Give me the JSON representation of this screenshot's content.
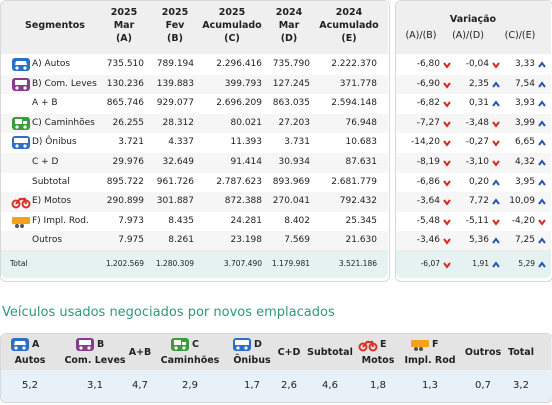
{
  "table": {
    "columns": [
      {
        "lines": [
          "Segmentos"
        ]
      },
      {
        "lines": [
          "2025",
          "Mar",
          "(A)"
        ]
      },
      {
        "lines": [
          "2025",
          "Fev",
          "(B)"
        ]
      },
      {
        "lines": [
          "2025",
          "Acumulado",
          "(C)"
        ]
      },
      {
        "lines": [
          "2024",
          "Mar",
          "(D)"
        ]
      },
      {
        "lines": [
          "2024",
          "Acumulado",
          "(E)"
        ]
      }
    ],
    "variation": {
      "title": "Variação",
      "columns": [
        "(A)/(B)",
        "(A)/(D)",
        "(C)/(E)"
      ]
    },
    "rows": [
      {
        "label": "A) Autos",
        "values": [
          "735.510",
          "789.194",
          "2.296.416",
          "735.790",
          "2.222.370"
        ],
        "variations": [
          "-6,80",
          "-0,04",
          "3,33"
        ]
      },
      {
        "label": "B) Com. Leves",
        "values": [
          "130.236",
          "139.883",
          "399.793",
          "127.245",
          "371.778"
        ],
        "variations": [
          "-6,90",
          "2,35",
          "7,54"
        ]
      },
      {
        "label": "A + B",
        "values": [
          "865.746",
          "929.077",
          "2.696.209",
          "863.035",
          "2.594.148"
        ],
        "variations": [
          "-6,82",
          "0,31",
          "3,93"
        ]
      },
      {
        "label": "C) Caminhões",
        "values": [
          "26.255",
          "28.312",
          "80.021",
          "27.203",
          "76.948"
        ],
        "variations": [
          "-7,27",
          "-3,48",
          "3,99"
        ]
      },
      {
        "label": "D) Ônibus",
        "values": [
          "3.721",
          "4.337",
          "11.393",
          "3.731",
          "10.683"
        ],
        "variations": [
          "-14,20",
          "-0,27",
          "6,65"
        ]
      },
      {
        "label": "C + D",
        "values": [
          "29.976",
          "32.649",
          "91.414",
          "30.934",
          "87.631"
        ],
        "variations": [
          "-8,19",
          "-3,10",
          "4,32"
        ]
      },
      {
        "label": "Subtotal",
        "values": [
          "895.722",
          "961.726",
          "2.787.623",
          "893.969",
          "2.681.779"
        ],
        "variations": [
          "-6,86",
          "0,20",
          "3,95"
        ]
      },
      {
        "label": "E) Motos",
        "values": [
          "290.899",
          "301.887",
          "872.388",
          "270.041",
          "792.432"
        ],
        "variations": [
          "-3,64",
          "7,72",
          "10,09"
        ]
      },
      {
        "label": "F) Impl. Rod.",
        "values": [
          "7.973",
          "8.435",
          "24.281",
          "8.402",
          "25.345"
        ],
        "variations": [
          "-5,48",
          "-5,11",
          "-4,20"
        ]
      },
      {
        "label": "Outros",
        "values": [
          "7.975",
          "8.261",
          "23.198",
          "7.569",
          "21.630"
        ],
        "variations": [
          "-3,46",
          "5,36",
          "7,25"
        ]
      }
    ],
    "total": {
      "label": "Total",
      "values": [
        "1.202.569",
        "1.280.309",
        "3.707.490",
        "1.179.981",
        "3.521.186"
      ],
      "variations": [
        "-6,07",
        "1,91",
        "5,29"
      ]
    }
  },
  "used": {
    "title": "Veículos usados negociados por novos emplacados",
    "columns": [
      {
        "letter": "A",
        "label": "Autos",
        "value": "5,2"
      },
      {
        "letter": "B",
        "label": "Com. Leves",
        "value": "3,1"
      },
      {
        "label": "A+B",
        "value": "4,7"
      },
      {
        "letter": "C",
        "label": "Caminhões",
        "value": "2,9"
      },
      {
        "letter": "D",
        "label": "Ônibus",
        "value": "1,7"
      },
      {
        "label": "C+D",
        "value": "2,6"
      },
      {
        "label": "Subtotal",
        "value": "4,6"
      },
      {
        "letter": "E",
        "label": "Motos",
        "value": "1,8"
      },
      {
        "letter": "F",
        "label": "Impl. Rod",
        "value": "1,3"
      },
      {
        "label": "Outros",
        "value": "0,7"
      },
      {
        "label": "Total",
        "value": "3,2"
      }
    ]
  }
}
